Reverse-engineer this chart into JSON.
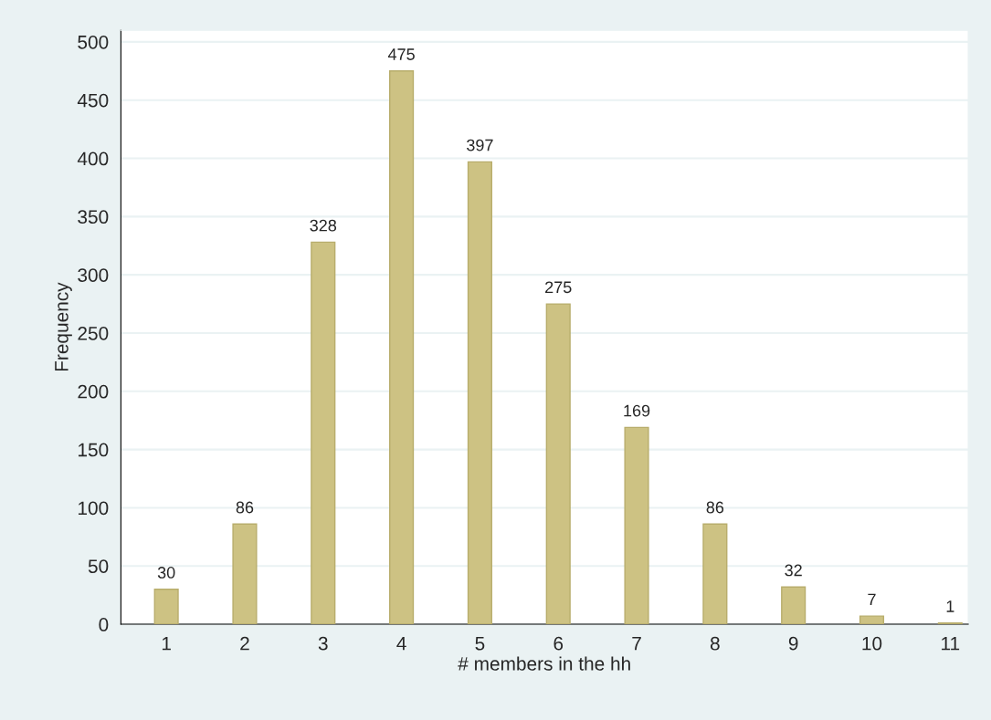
{
  "chart_data": {
    "type": "bar",
    "xlabel": "# members in the hh",
    "ylabel": "Frequency",
    "x": [
      1,
      2,
      3,
      4,
      5,
      6,
      7,
      8,
      9,
      10,
      11
    ],
    "values": [
      30,
      86,
      328,
      475,
      397,
      275,
      169,
      86,
      32,
      7,
      1
    ],
    "color": "#cdc283",
    "xlim": [
      0.42,
      11.23
    ],
    "xticks": [
      1,
      2,
      3,
      4,
      5,
      6,
      7,
      8,
      9,
      10,
      11
    ],
    "ylim": [
      0,
      510
    ],
    "yticks": [
      0,
      50,
      100,
      150,
      200,
      250,
      300,
      350,
      400,
      450,
      500
    ],
    "grid": "y",
    "data_labels": true,
    "legend": false
  }
}
